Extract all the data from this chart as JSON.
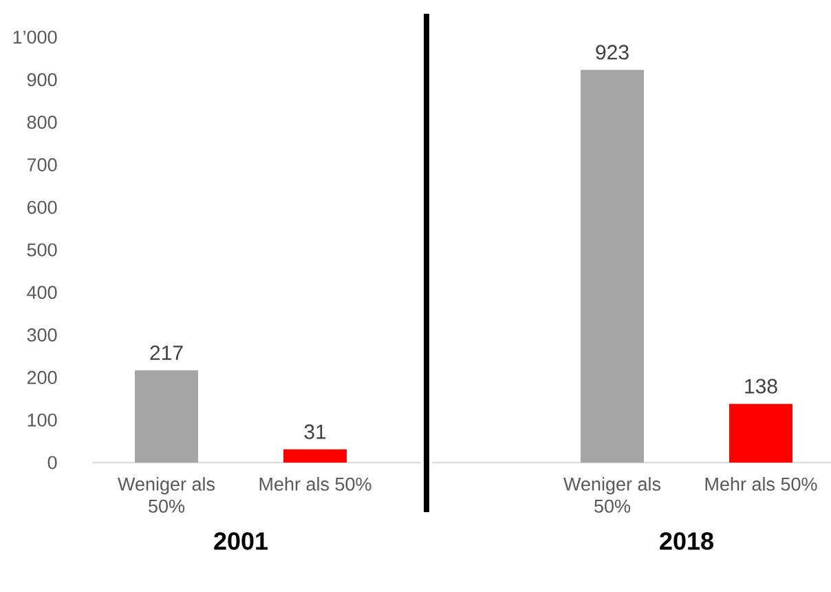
{
  "chart_data": [
    {
      "type": "bar",
      "xlabel": "2001",
      "categories": [
        "Weniger als 50%",
        "Mehr als 50%"
      ],
      "values": [
        217,
        31
      ],
      "colors": [
        "#a5a5a5",
        "#ff0000"
      ],
      "ylim": [
        0,
        1000
      ],
      "yticks": [
        0,
        100,
        200,
        300,
        400,
        500,
        600,
        700,
        800,
        900,
        {
          "value": 1000,
          "label": "1’000"
        }
      ],
      "data_labels": true
    },
    {
      "type": "bar",
      "xlabel": "2018",
      "categories": [
        "Weniger als 50%",
        "Mehr als 50%"
      ],
      "values": [
        923,
        138
      ],
      "colors": [
        "#a5a5a5",
        "#ff0000"
      ],
      "ylim": [
        0,
        1000
      ],
      "yticks": [
        0,
        100,
        200,
        300,
        400,
        500,
        600,
        700,
        800,
        900,
        1000
      ],
      "data_labels": true,
      "tick_labels": "x"
    }
  ]
}
